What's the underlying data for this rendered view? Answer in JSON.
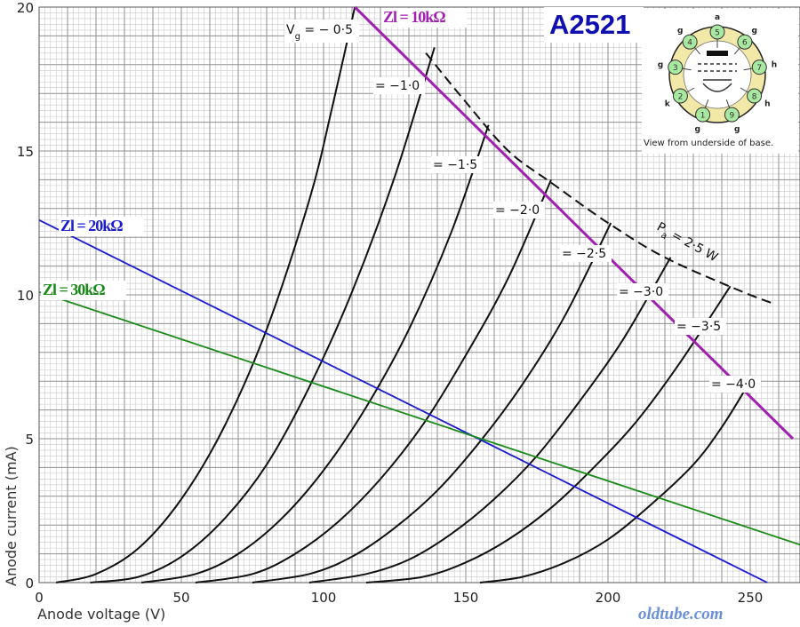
{
  "chart_data": {
    "type": "line",
    "title": "A2521",
    "xlabel": "Anode voltage (V)",
    "ylabel": "Anode current (mA)",
    "xlim": [
      0,
      260
    ],
    "ylim": [
      0,
      20
    ],
    "x_ticks": [
      0,
      50,
      100,
      150,
      200,
      250
    ],
    "x_tick_labels": [
      "0",
      "50",
      "100",
      "150",
      "200",
      "250"
    ],
    "y_ticks": [
      0,
      5,
      10,
      15,
      20
    ],
    "y_tick_labels": [
      "0",
      "5",
      "10",
      "15",
      "20"
    ],
    "grid": true,
    "series": [
      {
        "name": "Vg = −0·5",
        "label": "V",
        "label_sub": "g",
        "label_rest": " = − 0·5",
        "x": [
          6,
          20,
          35,
          50,
          65,
          80,
          95,
          103,
          111
        ],
        "y": [
          0,
          0.3,
          1.2,
          2.9,
          5.4,
          8.8,
          13.3,
          16.5,
          20.0
        ]
      },
      {
        "name": "−1·0",
        "label": "= −1·0",
        "x": [
          18,
          35,
          50,
          65,
          80,
          95,
          110,
          125,
          139
        ],
        "y": [
          0,
          0.2,
          0.9,
          2.2,
          4.1,
          6.8,
          10.1,
          14.1,
          18.6
        ]
      },
      {
        "name": "−1·5",
        "label": "= −1·5",
        "x": [
          36,
          55,
          70,
          85,
          100,
          115,
          130,
          145,
          158
        ],
        "y": [
          0,
          0.3,
          1.0,
          2.2,
          3.9,
          6.1,
          8.8,
          12.2,
          15.9
        ]
      },
      {
        "name": "−2·0",
        "label": "= −2·0",
        "x": [
          55,
          75,
          90,
          105,
          120,
          135,
          150,
          165,
          180
        ],
        "y": [
          0,
          0.3,
          1.0,
          2.1,
          3.6,
          5.5,
          7.9,
          10.6,
          14.0
        ]
      },
      {
        "name": "−2·5",
        "label": "= −2·5",
        "x": [
          75,
          95,
          110,
          125,
          140,
          155,
          170,
          185,
          201
        ],
        "y": [
          0,
          0.3,
          0.9,
          1.9,
          3.2,
          4.9,
          6.9,
          9.3,
          12.5
        ]
      },
      {
        "name": "−3·0",
        "label": "= −3·0",
        "x": [
          95,
          115,
          130,
          145,
          160,
          175,
          190,
          205,
          222
        ],
        "y": [
          0,
          0.3,
          0.8,
          1.7,
          2.9,
          4.4,
          6.3,
          8.4,
          11.3
        ]
      },
      {
        "name": "−3·5",
        "label": "= −3·5",
        "x": [
          115,
          135,
          150,
          165,
          180,
          195,
          210,
          225,
          243
        ],
        "y": [
          0,
          0.2,
          0.7,
          1.5,
          2.6,
          4.0,
          5.6,
          7.6,
          10.3
        ]
      },
      {
        "name": "−4·0",
        "label": "= −4·0",
        "x": [
          155,
          170,
          185,
          200,
          215,
          230,
          240,
          250
        ],
        "y": [
          0,
          0.2,
          0.7,
          1.5,
          2.7,
          4.1,
          5.4,
          7.0
        ]
      }
    ],
    "max_dissipation": {
      "label": "P",
      "label_sub": "a",
      "label_rest": " = 2·5 W",
      "x": [
        136,
        150,
        165,
        180,
        200,
        220,
        245,
        258
      ],
      "y": [
        18.4,
        16.7,
        15.0,
        13.9,
        12.5,
        11.3,
        10.2,
        9.7
      ]
    },
    "load_lines": [
      {
        "name": "Zl = 10kΩ",
        "label": "Zl = 10kΩ",
        "color": "#a020b0",
        "x": [
          111,
          265
        ],
        "y": [
          20.0,
          5.0
        ]
      },
      {
        "name": "Zl = 20kΩ",
        "label": "Zl = 20kΩ",
        "color": "#1a1ad0",
        "x": [
          0,
          256
        ],
        "y": [
          12.6,
          0
        ]
      },
      {
        "name": "Zl = 30kΩ",
        "label": "Zl = 30kΩ",
        "color": "#1a8a1a",
        "x": [
          0,
          268
        ],
        "y": [
          10.1,
          1.3
        ]
      }
    ]
  },
  "inset": {
    "caption": "View from underside of base.",
    "pins": [
      "1",
      "2",
      "3",
      "4",
      "5",
      "6",
      "7",
      "8",
      "9"
    ],
    "pin_functions": [
      "g",
      "k",
      "g",
      "g",
      "a",
      "g",
      "h",
      "h",
      "g"
    ]
  },
  "watermark": "oldtube.com",
  "colors": {
    "curve": "#111111",
    "grid_major": "#8f8f8f",
    "grid_minor": "#c8c8c8",
    "pin_fill": "#a8e8a0",
    "pin_ring": "#f2e9a8",
    "title": "#1010b0"
  }
}
